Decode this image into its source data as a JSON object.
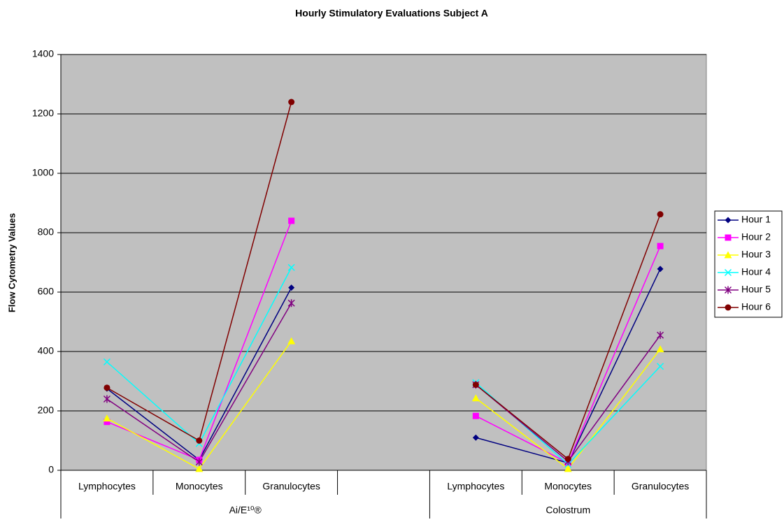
{
  "chart_data": {
    "type": "line",
    "title": "Hourly Stimulatory Evaluations Subject A",
    "y_axis_label": "Flow Cytometry Values",
    "categories": [
      "Lymphocytes",
      "Monocytes",
      "Granulocytes",
      null,
      "Lymphocytes",
      "Monocytes",
      "Granulocytes"
    ],
    "groups": [
      "Ai/E¹⁰®",
      "Colostrum"
    ],
    "series": [
      {
        "name": "Hour 1",
        "color": "#000080",
        "marker": "diamond",
        "values": [
          275,
          35,
          615,
          null,
          110,
          25,
          678
        ]
      },
      {
        "name": "Hour 2",
        "color": "#ff00ff",
        "marker": "square",
        "values": [
          163,
          35,
          840,
          null,
          183,
          25,
          755
        ]
      },
      {
        "name": "Hour 3",
        "color": "#ffff00",
        "marker": "triangle",
        "values": [
          175,
          5,
          435,
          null,
          243,
          5,
          408
        ]
      },
      {
        "name": "Hour 4",
        "color": "#00ffff",
        "marker": "x",
        "values": [
          365,
          90,
          683,
          null,
          295,
          20,
          350
        ]
      },
      {
        "name": "Hour 5",
        "color": "#800080",
        "marker": "star",
        "values": [
          240,
          28,
          563,
          null,
          288,
          30,
          455
        ]
      },
      {
        "name": "Hour 6",
        "color": "#800000",
        "marker": "circle",
        "values": [
          278,
          100,
          1240,
          null,
          288,
          38,
          862
        ]
      }
    ],
    "ylim": [
      0,
      1400
    ],
    "yticks": [
      0,
      200,
      400,
      600,
      800,
      1000,
      1200,
      1400
    ],
    "grid": true,
    "legend": "right"
  }
}
